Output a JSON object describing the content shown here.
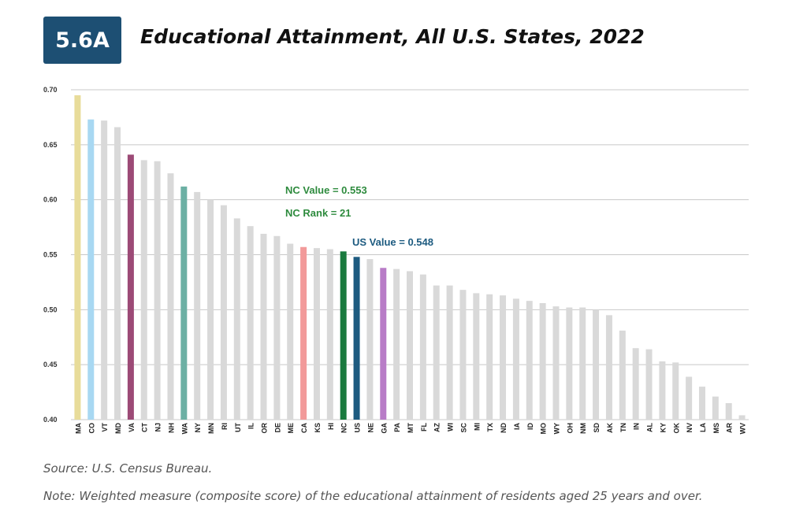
{
  "header": {
    "figure_number": "5.6A",
    "title": "Educational Attainment, All U.S. States, 2022"
  },
  "footer": {
    "source": "Source: U.S. Census Bureau.",
    "note": "Note: Weighted measure (composite score) of the educational attainment of residents aged 25 years and over."
  },
  "chart_data": {
    "type": "bar",
    "title": "Educational Attainment, All U.S. States, 2022",
    "xlabel": "",
    "ylabel": "",
    "ylim": [
      0.4,
      0.7
    ],
    "yticks": [
      "0.70",
      "0.65",
      "0.60",
      "0.55",
      "0.50",
      "0.45",
      "0.40"
    ],
    "grid": true,
    "categories": [
      "MA",
      "CO",
      "VT",
      "MD",
      "VA",
      "CT",
      "NJ",
      "NH",
      "WA",
      "NY",
      "MN",
      "RI",
      "UT",
      "IL",
      "OR",
      "DE",
      "ME",
      "CA",
      "KS",
      "HI",
      "NC",
      "US",
      "NE",
      "GA",
      "PA",
      "MT",
      "FL",
      "AZ",
      "WI",
      "SC",
      "MI",
      "TX",
      "ND",
      "IA",
      "ID",
      "MO",
      "WY",
      "OH",
      "NM",
      "SD",
      "AK",
      "TN",
      "IN",
      "AL",
      "KY",
      "OK",
      "NV",
      "LA",
      "MS",
      "AR",
      "WV"
    ],
    "values": [
      0.695,
      0.673,
      0.672,
      0.666,
      0.641,
      0.636,
      0.635,
      0.624,
      0.612,
      0.607,
      0.6,
      0.595,
      0.583,
      0.576,
      0.569,
      0.567,
      0.56,
      0.557,
      0.556,
      0.555,
      0.553,
      0.548,
      0.546,
      0.538,
      0.537,
      0.535,
      0.532,
      0.522,
      0.522,
      0.518,
      0.515,
      0.514,
      0.513,
      0.51,
      0.508,
      0.506,
      0.503,
      0.502,
      0.502,
      0.5,
      0.495,
      0.481,
      0.465,
      0.464,
      0.453,
      0.452,
      0.439,
      0.43,
      0.421,
      0.415,
      0.404
    ],
    "colors": {
      "default": "#d9d9d9",
      "MA": "#e8dc9a",
      "CO": "#a8d8f2",
      "VA": "#9c4a76",
      "WA": "#6cb0a4",
      "CA": "#f29a9a",
      "NC": "#1a7a3e",
      "US": "#1d5b80",
      "GA": "#b87cc7",
      "nc_annotation": "#2e8b3e",
      "us_annotation": "#1d5b80"
    },
    "annotations": [
      {
        "text": "NC Value = 0.553",
        "category": "NC",
        "color_key": "nc_annotation"
      },
      {
        "text": "NC Rank = 21",
        "category": "NC",
        "color_key": "nc_annotation"
      },
      {
        "text": "US Value = 0.548",
        "category": "US",
        "color_key": "us_annotation"
      }
    ]
  }
}
